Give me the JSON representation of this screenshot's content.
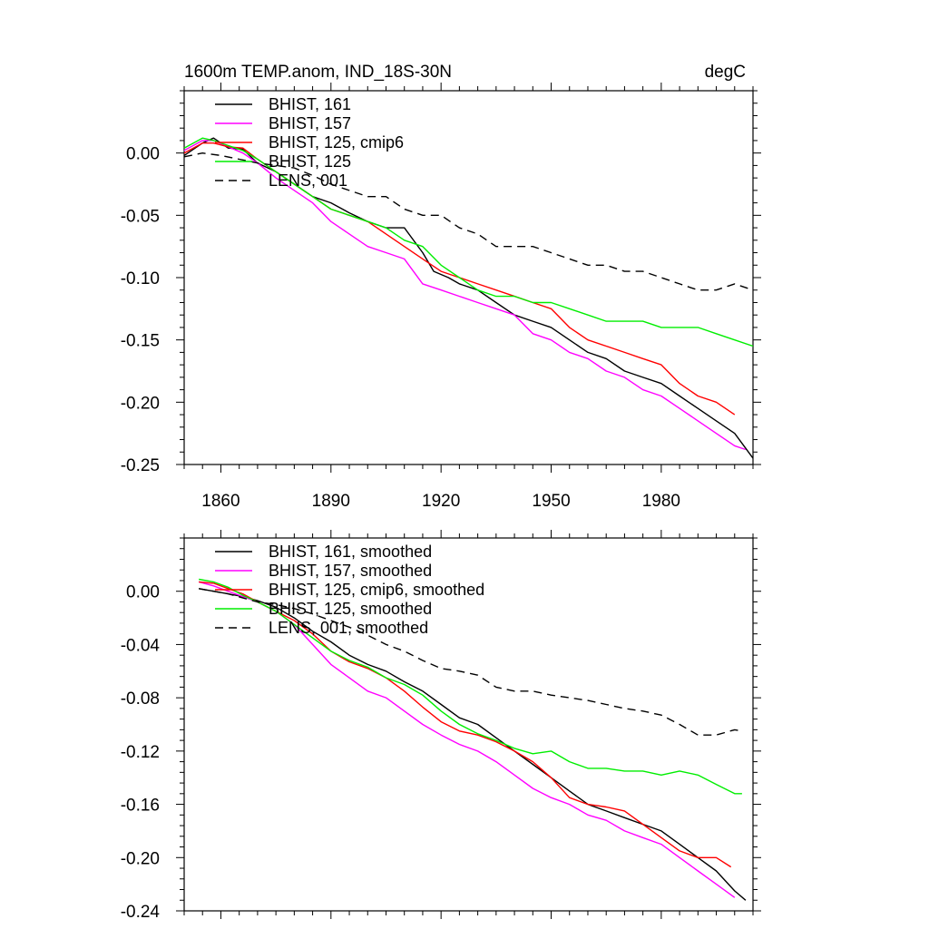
{
  "chart_data": [
    {
      "type": "line",
      "title_left": "1600m TEMP.anom, IND_18S-30N",
      "title_right": "degC",
      "xlim": [
        1850,
        2005
      ],
      "ylim": [
        -0.25,
        0.05
      ],
      "x_ticks": [
        1860,
        1890,
        1920,
        1950,
        1980
      ],
      "x_tick_labels": [
        "1860",
        "1890",
        "1920",
        "1950",
        "1980"
      ],
      "y_ticks": [
        0.0,
        -0.05,
        -0.1,
        -0.15,
        -0.2,
        -0.25
      ],
      "y_tick_labels": [
        "0.00",
        "-0.05",
        "-0.10",
        "-0.15",
        "-0.20",
        "-0.25"
      ],
      "legend_position": "top-left",
      "series": [
        {
          "name": "BHIST, 161",
          "color": "#000000",
          "dash": "solid",
          "x": [
            1850,
            1855,
            1858,
            1862,
            1866,
            1870,
            1875,
            1880,
            1885,
            1890,
            1895,
            1900,
            1905,
            1910,
            1915,
            1918,
            1922,
            1925,
            1930,
            1935,
            1940,
            1945,
            1950,
            1955,
            1960,
            1965,
            1970,
            1975,
            1980,
            1985,
            1990,
            1995,
            2000,
            2005
          ],
          "y": [
            -0.002,
            0.008,
            0.012,
            0.004,
            0.003,
            -0.008,
            -0.015,
            -0.025,
            -0.035,
            -0.04,
            -0.048,
            -0.055,
            -0.06,
            -0.06,
            -0.08,
            -0.095,
            -0.1,
            -0.105,
            -0.11,
            -0.12,
            -0.13,
            -0.135,
            -0.14,
            -0.15,
            -0.16,
            -0.165,
            -0.175,
            -0.18,
            -0.185,
            -0.195,
            -0.205,
            -0.215,
            -0.225,
            -0.245
          ]
        },
        {
          "name": "BHIST, 157",
          "color": "#ff00ff",
          "dash": "solid",
          "x": [
            1850,
            1855,
            1858,
            1862,
            1866,
            1870,
            1875,
            1880,
            1885,
            1890,
            1895,
            1900,
            1905,
            1910,
            1915,
            1920,
            1925,
            1930,
            1935,
            1940,
            1945,
            1950,
            1955,
            1960,
            1965,
            1970,
            1975,
            1980,
            1985,
            1990,
            1995,
            2000,
            2003
          ],
          "y": [
            0.002,
            0.01,
            0.01,
            0.005,
            0.0,
            -0.008,
            -0.02,
            -0.03,
            -0.04,
            -0.055,
            -0.065,
            -0.075,
            -0.08,
            -0.085,
            -0.105,
            -0.11,
            -0.115,
            -0.12,
            -0.125,
            -0.13,
            -0.145,
            -0.15,
            -0.16,
            -0.165,
            -0.175,
            -0.18,
            -0.19,
            -0.195,
            -0.205,
            -0.215,
            -0.225,
            -0.235,
            -0.238
          ]
        },
        {
          "name": "BHIST, 125, cmip6",
          "color": "#ff0000",
          "dash": "solid",
          "x": [
            1850,
            1855,
            1858,
            1862,
            1866,
            1870,
            1875,
            1880,
            1885,
            1890,
            1895,
            1900,
            1905,
            1910,
            1915,
            1920,
            1925,
            1930,
            1935,
            1940,
            1945,
            1950,
            1955,
            1960,
            1965,
            1970,
            1975,
            1980,
            1985,
            1990,
            1995,
            2000
          ],
          "y": [
            0.0,
            0.008,
            0.008,
            0.005,
            0.004,
            -0.005,
            -0.015,
            -0.025,
            -0.035,
            -0.045,
            -0.05,
            -0.055,
            -0.065,
            -0.075,
            -0.085,
            -0.095,
            -0.1,
            -0.105,
            -0.11,
            -0.115,
            -0.12,
            -0.125,
            -0.14,
            -0.15,
            -0.155,
            -0.16,
            -0.165,
            -0.17,
            -0.185,
            -0.195,
            -0.2,
            -0.21
          ]
        },
        {
          "name": "BHIST, 125",
          "color": "#00ee00",
          "dash": "solid",
          "x": [
            1850,
            1855,
            1858,
            1862,
            1866,
            1870,
            1875,
            1880,
            1885,
            1890,
            1895,
            1900,
            1905,
            1910,
            1915,
            1920,
            1925,
            1930,
            1935,
            1940,
            1945,
            1950,
            1955,
            1960,
            1965,
            1970,
            1975,
            1980,
            1985,
            1990,
            1995,
            2000,
            2005
          ],
          "y": [
            0.004,
            0.012,
            0.01,
            0.006,
            0.002,
            -0.005,
            -0.015,
            -0.025,
            -0.035,
            -0.045,
            -0.05,
            -0.055,
            -0.06,
            -0.07,
            -0.075,
            -0.09,
            -0.1,
            -0.11,
            -0.115,
            -0.115,
            -0.12,
            -0.12,
            -0.125,
            -0.13,
            -0.135,
            -0.135,
            -0.135,
            -0.14,
            -0.14,
            -0.14,
            -0.145,
            -0.15,
            -0.155
          ]
        },
        {
          "name": "LENS, 001",
          "color": "#000000",
          "dash": "dashed",
          "x": [
            1850,
            1855,
            1860,
            1865,
            1870,
            1875,
            1880,
            1885,
            1890,
            1895,
            1900,
            1905,
            1910,
            1915,
            1920,
            1925,
            1930,
            1935,
            1940,
            1945,
            1950,
            1955,
            1960,
            1965,
            1970,
            1975,
            1980,
            1985,
            1990,
            1995,
            2000,
            2005
          ],
          "y": [
            -0.003,
            0.0,
            -0.002,
            -0.005,
            -0.008,
            -0.01,
            -0.012,
            -0.018,
            -0.025,
            -0.03,
            -0.035,
            -0.035,
            -0.045,
            -0.05,
            -0.05,
            -0.06,
            -0.065,
            -0.075,
            -0.075,
            -0.075,
            -0.08,
            -0.085,
            -0.09,
            -0.09,
            -0.095,
            -0.095,
            -0.1,
            -0.105,
            -0.11,
            -0.11,
            -0.105,
            -0.11
          ]
        }
      ]
    },
    {
      "type": "line",
      "xlim": [
        1850,
        2005
      ],
      "ylim": [
        -0.24,
        0.04
      ],
      "x_ticks": [
        1860,
        1890,
        1920,
        1950,
        1980
      ],
      "y_ticks": [
        0.0,
        -0.04,
        -0.08,
        -0.12,
        -0.16,
        -0.2,
        -0.24
      ],
      "y_tick_labels": [
        "0.00",
        "-0.04",
        "-0.08",
        "-0.12",
        "-0.16",
        "-0.20",
        "-0.24"
      ],
      "legend_position": "top-left",
      "series": [
        {
          "name": "BHIST, 161, smoothed",
          "color": "#000000",
          "dash": "solid",
          "x": [
            1854,
            1858,
            1862,
            1866,
            1870,
            1875,
            1880,
            1885,
            1890,
            1895,
            1900,
            1905,
            1910,
            1915,
            1920,
            1925,
            1930,
            1935,
            1940,
            1945,
            1950,
            1955,
            1960,
            1965,
            1970,
            1975,
            1980,
            1985,
            1990,
            1995,
            2000,
            2003
          ],
          "y": [
            0.002,
            0.0,
            -0.002,
            -0.004,
            -0.007,
            -0.012,
            -0.02,
            -0.03,
            -0.038,
            -0.048,
            -0.055,
            -0.06,
            -0.068,
            -0.075,
            -0.085,
            -0.095,
            -0.1,
            -0.11,
            -0.12,
            -0.13,
            -0.14,
            -0.15,
            -0.16,
            -0.165,
            -0.17,
            -0.175,
            -0.18,
            -0.19,
            -0.2,
            -0.21,
            -0.225,
            -0.232
          ]
        },
        {
          "name": "BHIST, 157, smoothed",
          "color": "#ff00ff",
          "dash": "solid",
          "x": [
            1854,
            1858,
            1862,
            1866,
            1870,
            1875,
            1880,
            1885,
            1890,
            1895,
            1900,
            1905,
            1910,
            1915,
            1920,
            1925,
            1930,
            1935,
            1940,
            1945,
            1950,
            1955,
            1960,
            1965,
            1970,
            1975,
            1980,
            1985,
            1990,
            1995,
            2000
          ],
          "y": [
            0.007,
            0.004,
            0.0,
            -0.004,
            -0.008,
            -0.015,
            -0.025,
            -0.04,
            -0.055,
            -0.065,
            -0.075,
            -0.08,
            -0.09,
            -0.1,
            -0.108,
            -0.115,
            -0.12,
            -0.128,
            -0.138,
            -0.148,
            -0.155,
            -0.16,
            -0.168,
            -0.172,
            -0.18,
            -0.185,
            -0.19,
            -0.2,
            -0.21,
            -0.22,
            -0.23
          ]
        },
        {
          "name": "BHIST, 125, cmip6, smoothed",
          "color": "#ff0000",
          "dash": "solid",
          "x": [
            1854,
            1858,
            1862,
            1866,
            1870,
            1875,
            1880,
            1885,
            1890,
            1895,
            1900,
            1905,
            1910,
            1915,
            1920,
            1925,
            1930,
            1935,
            1940,
            1945,
            1950,
            1955,
            1960,
            1965,
            1970,
            1975,
            1980,
            1985,
            1990,
            1995,
            1999
          ],
          "y": [
            0.007,
            0.006,
            0.002,
            -0.002,
            -0.008,
            -0.015,
            -0.022,
            -0.032,
            -0.045,
            -0.053,
            -0.058,
            -0.065,
            -0.075,
            -0.087,
            -0.098,
            -0.105,
            -0.108,
            -0.113,
            -0.12,
            -0.128,
            -0.14,
            -0.155,
            -0.16,
            -0.162,
            -0.165,
            -0.175,
            -0.185,
            -0.195,
            -0.2,
            -0.2,
            -0.207
          ]
        },
        {
          "name": "BHIST, 125, smoothed",
          "color": "#00ee00",
          "dash": "solid",
          "x": [
            1854,
            1858,
            1862,
            1866,
            1870,
            1875,
            1880,
            1885,
            1890,
            1895,
            1900,
            1905,
            1910,
            1915,
            1920,
            1925,
            1930,
            1935,
            1940,
            1945,
            1950,
            1955,
            1960,
            1965,
            1970,
            1975,
            1980,
            1985,
            1990,
            1995,
            2000,
            2002
          ],
          "y": [
            0.009,
            0.007,
            0.003,
            -0.003,
            -0.008,
            -0.015,
            -0.025,
            -0.035,
            -0.045,
            -0.052,
            -0.057,
            -0.065,
            -0.07,
            -0.078,
            -0.09,
            -0.1,
            -0.107,
            -0.112,
            -0.118,
            -0.122,
            -0.12,
            -0.128,
            -0.133,
            -0.133,
            -0.135,
            -0.135,
            -0.138,
            -0.135,
            -0.138,
            -0.145,
            -0.152,
            -0.152
          ]
        },
        {
          "name": "LENS, 001, smoothed",
          "color": "#000000",
          "dash": "dashed",
          "x": [
            1854,
            1858,
            1862,
            1866,
            1870,
            1875,
            1880,
            1885,
            1890,
            1895,
            1900,
            1905,
            1910,
            1915,
            1920,
            1925,
            1930,
            1935,
            1940,
            1945,
            1950,
            1955,
            1960,
            1965,
            1970,
            1975,
            1980,
            1985,
            1990,
            1995,
            2000,
            2002
          ],
          "y": [
            0.002,
            0.0,
            -0.002,
            -0.005,
            -0.008,
            -0.01,
            -0.013,
            -0.017,
            -0.022,
            -0.027,
            -0.033,
            -0.04,
            -0.045,
            -0.052,
            -0.058,
            -0.06,
            -0.063,
            -0.072,
            -0.075,
            -0.075,
            -0.078,
            -0.08,
            -0.082,
            -0.085,
            -0.088,
            -0.09,
            -0.093,
            -0.1,
            -0.108,
            -0.108,
            -0.104,
            -0.105
          ]
        }
      ]
    }
  ]
}
